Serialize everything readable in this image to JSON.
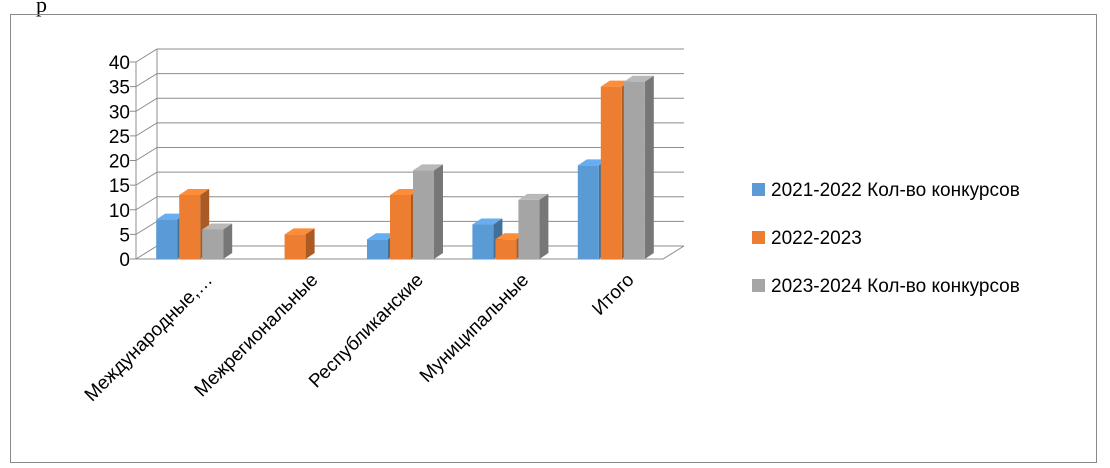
{
  "page": {
    "top_text_fragment": "р"
  },
  "chart_data": {
    "type": "bar",
    "three_d": true,
    "categories": [
      "Международные,…",
      "Межрегиональные",
      "Республиканские",
      "Муниципальные",
      "Итого"
    ],
    "series": [
      {
        "name": "2021-2022 Кол-во конкурсов",
        "values": [
          8,
          0,
          4,
          7,
          19
        ],
        "color": "#5b9bd5"
      },
      {
        "name": "2022-2023",
        "values": [
          13,
          5,
          13,
          4,
          35
        ],
        "color": "#ed7d31"
      },
      {
        "name": "2023-2024 Кол-во конкурсов",
        "values": [
          6,
          0,
          18,
          12,
          36
        ],
        "color": "#a5a5a5"
      }
    ],
    "ylim": [
      0,
      40
    ],
    "yticks": [
      "0",
      "5",
      "10",
      "15",
      "20",
      "25",
      "30",
      "35",
      "40"
    ],
    "grid": true,
    "legend_position": "right"
  }
}
